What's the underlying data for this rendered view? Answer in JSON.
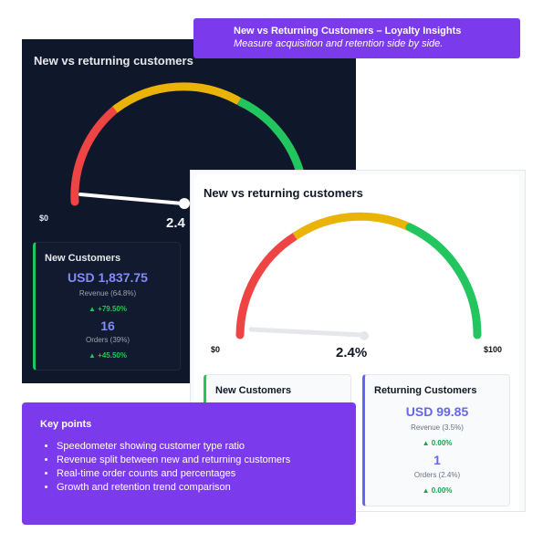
{
  "banner": {
    "title": "New vs Returning Customers – Loyalty Insights",
    "subtitle": "Measure acquisition and retention side by side."
  },
  "dark_card": {
    "title": "New vs returning customers",
    "min_label": "$0",
    "percent": "2.4",
    "new_customers": {
      "header": "New Customers",
      "revenue": "USD 1,837.75",
      "revenue_label": "Revenue (64.8%)",
      "revenue_growth": "▲ +79.50%",
      "orders": "16",
      "orders_label": "Orders (39%)",
      "orders_growth": "▲ +45.50%"
    }
  },
  "light_card": {
    "title": "New vs returning customers",
    "min_label": "$0",
    "max_label": "$100",
    "percent": "2.4%",
    "new_customers": {
      "header": "New Customers"
    },
    "returning_customers": {
      "header": "Returning Customers",
      "revenue": "USD 99.85",
      "revenue_label": "Revenue (3.5%)",
      "revenue_growth": "▲ 0.00%",
      "orders": "1",
      "orders_label": "Orders (2.4%)",
      "orders_growth": "▲ 0.00%"
    }
  },
  "gauge": {
    "value_percent": 2.4,
    "colors": {
      "low": "#ef4444",
      "mid": "#eab308",
      "high": "#22c55e"
    }
  },
  "key_points": {
    "title": "Key points",
    "items": [
      "Speedometer showing customer type ratio",
      "Revenue split between new and returning customers",
      "Real-time order counts and percentages",
      "Growth and retention trend comparison"
    ]
  }
}
